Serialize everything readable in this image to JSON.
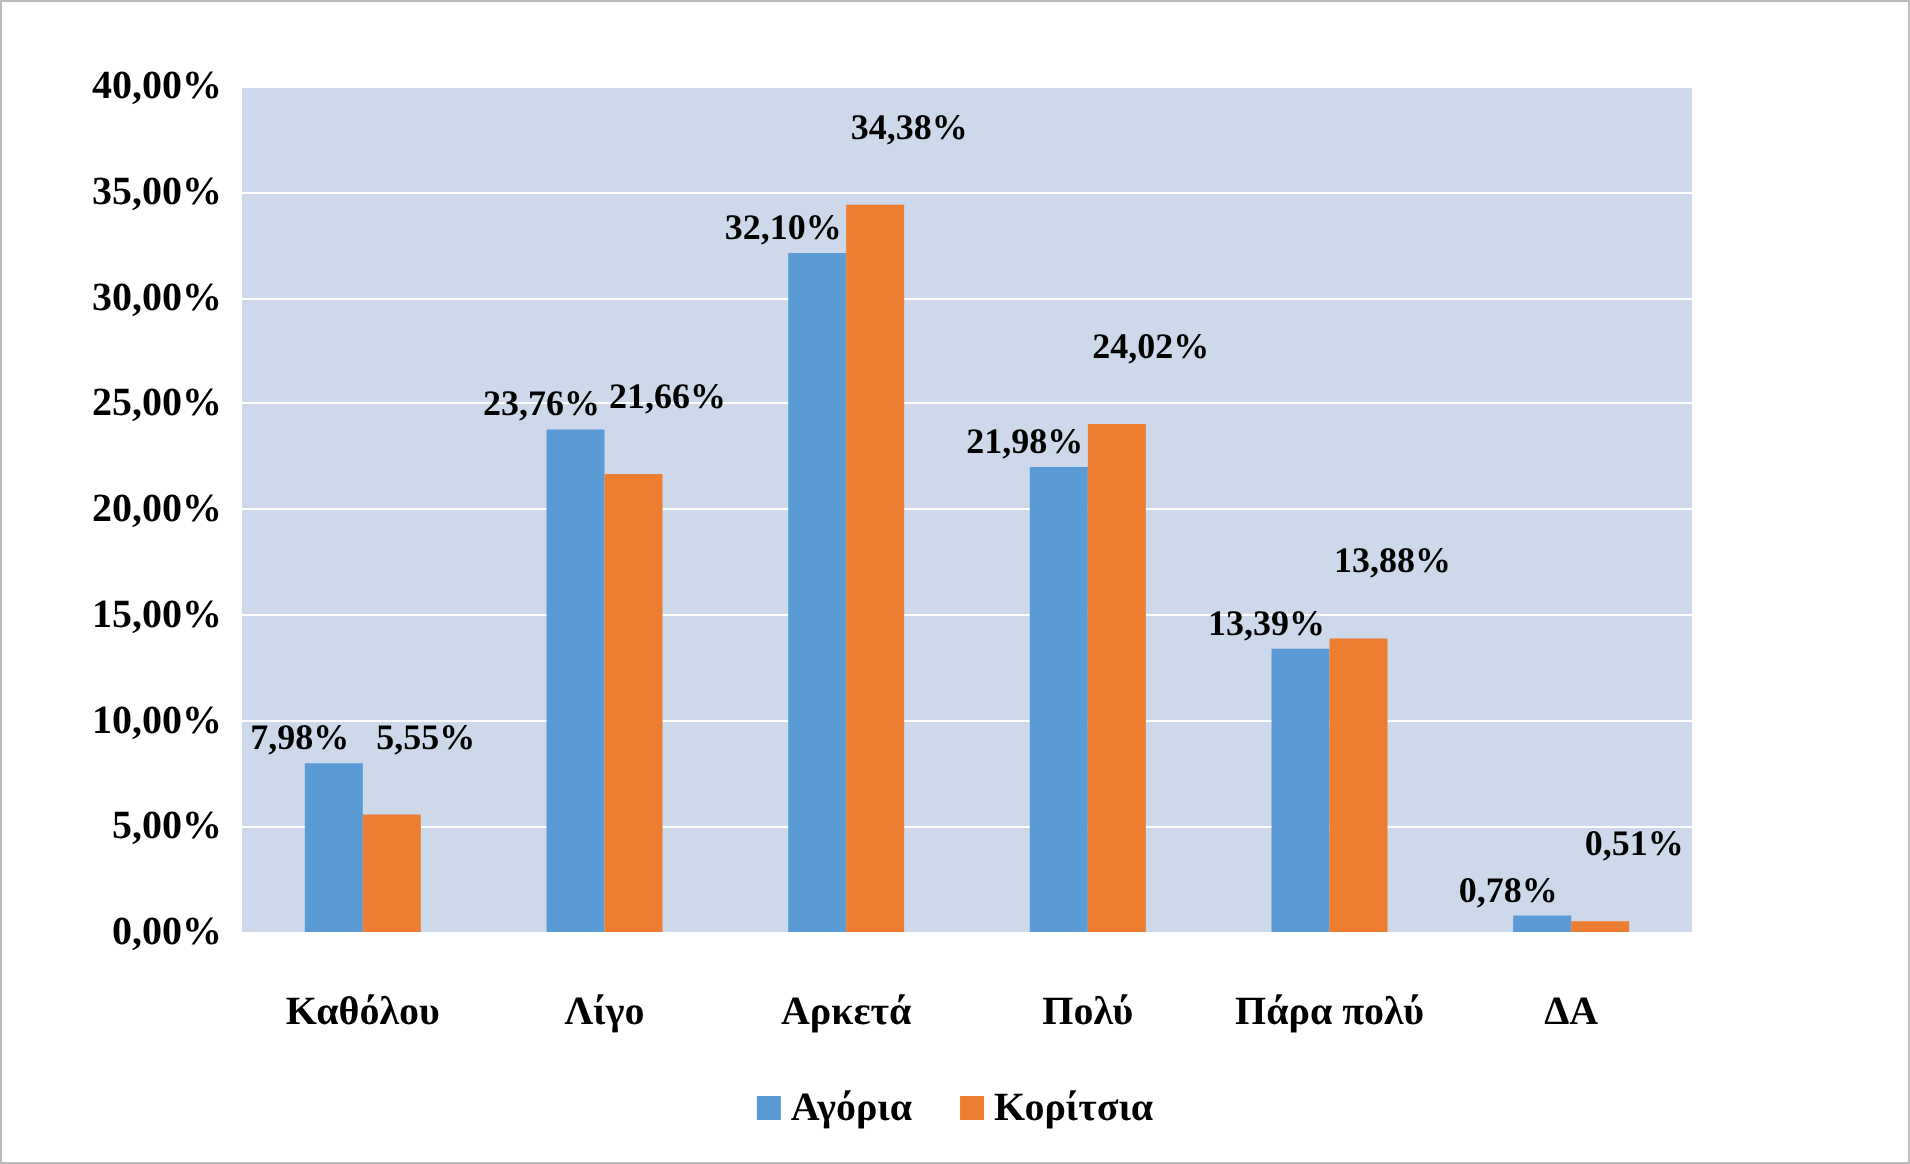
{
  "chart_data": {
    "type": "bar",
    "categories": [
      "Καθόλου",
      "Λίγο",
      "Αρκετά",
      "Πολύ",
      "Πάρα πολύ",
      "ΔΑ"
    ],
    "series": [
      {
        "name": "Αγόρια",
        "color": "#5b9bd5",
        "values": [
          7.98,
          23.76,
          32.1,
          21.98,
          13.39,
          0.78
        ],
        "value_labels": [
          "7,98%",
          "23,76%",
          "32,10%",
          "21,98%",
          "13,39%",
          "0,78%"
        ]
      },
      {
        "name": "Κορίτσια",
        "color": "#ed7d31",
        "values": [
          5.55,
          21.66,
          34.38,
          24.02,
          13.88,
          0.51
        ],
        "value_labels": [
          "5,55%",
          "21,66%",
          "34,38%",
          "24,02%",
          "13,88%",
          "0,51%"
        ]
      }
    ],
    "ylim": [
      0,
      40
    ],
    "yticks": [
      {
        "value": 0,
        "label": "0,00%"
      },
      {
        "value": 5,
        "label": "5,00%"
      },
      {
        "value": 10,
        "label": "10,00%"
      },
      {
        "value": 15,
        "label": "15,00%"
      },
      {
        "value": 20,
        "label": "20,00%"
      },
      {
        "value": 25,
        "label": "25,00%"
      },
      {
        "value": 30,
        "label": "30,00%"
      },
      {
        "value": 35,
        "label": "35,00%"
      },
      {
        "value": 40,
        "label": "40,00%"
      }
    ],
    "grid": "y",
    "legend": "bottom"
  }
}
